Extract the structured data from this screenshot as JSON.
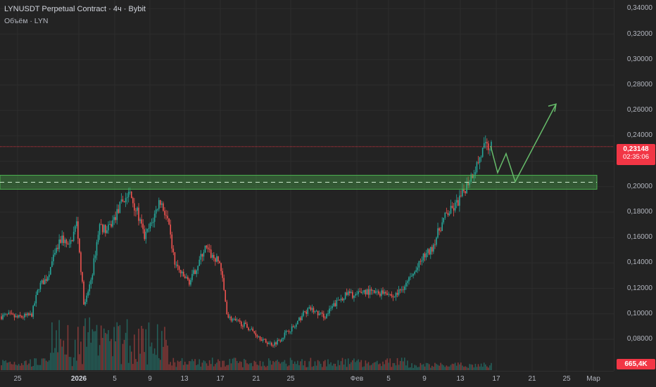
{
  "header": {
    "title": "LYNUSDT Perpetual Contract · 4ч · Bybit",
    "volume_label": "Объём · LYN"
  },
  "price_axis": {
    "ticks": [
      "0,34000",
      "0,32000",
      "0,30000",
      "0,28000",
      "0,26000",
      "0,24000",
      "0,22000",
      "0,20000",
      "0,18000",
      "0,16000",
      "0,14000",
      "0,12000",
      "0,10000",
      "0,08000"
    ],
    "tick_values": [
      0.34,
      0.32,
      0.3,
      0.28,
      0.26,
      0.24,
      0.22,
      0.2,
      0.18,
      0.16,
      0.14,
      0.12,
      0.1,
      0.08
    ]
  },
  "current_price": {
    "value": "0,23148",
    "countdown": "02:35:06",
    "value_num": 0.23148,
    "color": "#f23645"
  },
  "volume_badge": "665,4K",
  "time_axis": {
    "labels": [
      {
        "text": "25",
        "bold": false
      },
      {
        "text": "2026",
        "bold": true
      },
      {
        "text": "5",
        "bold": false
      },
      {
        "text": "9",
        "bold": false
      },
      {
        "text": "13",
        "bold": false
      },
      {
        "text": "17",
        "bold": false
      },
      {
        "text": "21",
        "bold": false
      },
      {
        "text": "25",
        "bold": false
      },
      {
        "text": "Фев",
        "bold": false
      },
      {
        "text": "5",
        "bold": false
      },
      {
        "text": "9",
        "bold": false
      },
      {
        "text": "13",
        "bold": false
      },
      {
        "text": "17",
        "bold": false
      },
      {
        "text": "21",
        "bold": false
      },
      {
        "text": "25",
        "bold": false
      },
      {
        "text": "Мар",
        "bold": false
      }
    ]
  },
  "chart_data": {
    "type": "candlestick",
    "symbol": "LYNUSDT",
    "interval": "4ч",
    "ylim": [
      0.07,
      0.345
    ],
    "support_zone": {
      "low": 0.198,
      "high": 0.209,
      "mid": 0.2035,
      "color": "#4caf50"
    },
    "resistance_line": 0.23148,
    "projection_path": [
      0.232,
      0.211,
      0.226,
      0.204,
      0.265
    ],
    "close_path": [
      0.098,
      0.099,
      0.097,
      0.098,
      0.099,
      0.122,
      0.128,
      0.145,
      0.16,
      0.152,
      0.172,
      0.105,
      0.13,
      0.17,
      0.165,
      0.175,
      0.188,
      0.195,
      0.18,
      0.16,
      0.172,
      0.19,
      0.175,
      0.14,
      0.13,
      0.125,
      0.138,
      0.152,
      0.145,
      0.14,
      0.098,
      0.094,
      0.092,
      0.088,
      0.083,
      0.078,
      0.076,
      0.08,
      0.087,
      0.09,
      0.1,
      0.104,
      0.1,
      0.098,
      0.106,
      0.112,
      0.116,
      0.114,
      0.118,
      0.117,
      0.116,
      0.118,
      0.113,
      0.119,
      0.126,
      0.134,
      0.145,
      0.15,
      0.165,
      0.178,
      0.183,
      0.192,
      0.205,
      0.216,
      0.23,
      0.2315
    ],
    "colors": {
      "up": "#26a69a",
      "down": "#ef5350"
    }
  }
}
